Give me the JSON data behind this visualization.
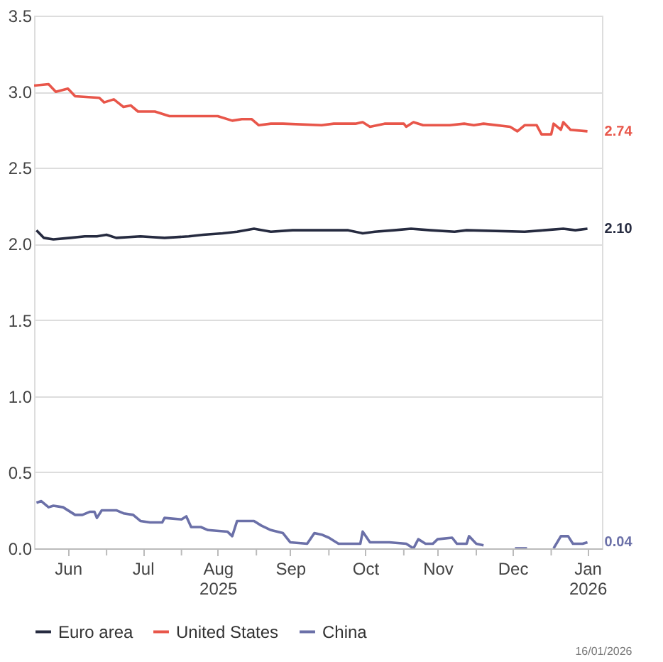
{
  "chart_data": {
    "type": "line",
    "ylim": [
      0,
      3.5
    ],
    "yticks": [
      {
        "value": 0,
        "label": "0.0"
      },
      {
        "value": 0.5,
        "label": "0.5"
      },
      {
        "value": 1,
        "label": "1.0"
      },
      {
        "value": 1.5,
        "label": "1.5"
      },
      {
        "value": 2,
        "label": "2.0"
      },
      {
        "value": 2.5,
        "label": "2.5"
      },
      {
        "value": 3,
        "label": "3.0"
      },
      {
        "value": 3.5,
        "label": "3.5"
      }
    ],
    "xlim": [
      "2025-06-01",
      "2026-01-22"
    ],
    "xticks": [
      {
        "value": "2025-06-15",
        "label": "Jun"
      },
      {
        "value": "2025-07-01",
        "label": null
      },
      {
        "value": "2025-07-16",
        "label": "Jul"
      },
      {
        "value": "2025-08-01",
        "label": null
      },
      {
        "value": "2025-08-16",
        "label": "Aug\n2025"
      },
      {
        "value": "2025-09-01",
        "label": null
      },
      {
        "value": "2025-09-15",
        "label": "Sep"
      },
      {
        "value": "2025-10-01",
        "label": null
      },
      {
        "value": "2025-10-16",
        "label": "Oct"
      },
      {
        "value": "2025-11-01",
        "label": null
      },
      {
        "value": "2025-11-15",
        "label": "Nov"
      },
      {
        "value": "2025-12-01",
        "label": null
      },
      {
        "value": "2025-12-16",
        "label": "Dec"
      },
      {
        "value": "2026-01-01",
        "label": null
      },
      {
        "value": "2026-01-16",
        "label": "Jan\n2026"
      }
    ],
    "grid": "y",
    "legend": "bottom",
    "line_style": "solid",
    "series": [
      {
        "name": "Euro area",
        "color": "#262b40",
        "x": [
          "2025-06-02",
          "2025-06-05",
          "2025-06-09",
          "2025-06-16",
          "2025-06-22",
          "2025-06-27",
          "2025-07-01",
          "2025-07-05",
          "2025-07-15",
          "2025-07-25",
          "2025-08-04",
          "2025-08-10",
          "2025-08-18",
          "2025-08-24",
          "2025-08-31",
          "2025-09-07",
          "2025-09-16",
          "2025-10-09",
          "2025-10-15",
          "2025-10-20",
          "2025-10-28",
          "2025-11-04",
          "2025-11-12",
          "2025-11-22",
          "2025-11-27",
          "2025-12-21",
          "2025-12-29",
          "2026-01-06",
          "2026-01-11",
          "2026-01-16"
        ],
        "values": [
          2.09,
          2.04,
          2.03,
          2.04,
          2.05,
          2.05,
          2.06,
          2.04,
          2.05,
          2.04,
          2.05,
          2.06,
          2.07,
          2.08,
          2.1,
          2.08,
          2.09,
          2.09,
          2.07,
          2.08,
          2.09,
          2.1,
          2.09,
          2.08,
          2.09,
          2.08,
          2.09,
          2.1,
          2.09,
          2.1
        ]
      },
      {
        "name": "United States",
        "color": "#e8564a",
        "x": [
          "2025-06-01",
          "2025-06-07",
          "2025-06-10",
          "2025-06-15",
          "2025-06-18",
          "2025-06-28",
          "2025-06-30",
          "2025-07-04",
          "2025-07-08",
          "2025-07-11",
          "2025-07-14",
          "2025-07-21",
          "2025-07-27",
          "2025-08-16",
          "2025-08-22",
          "2025-08-26",
          "2025-08-30",
          "2025-09-02",
          "2025-09-07",
          "2025-09-12",
          "2025-09-28",
          "2025-10-03",
          "2025-10-12",
          "2025-10-15",
          "2025-10-18",
          "2025-10-24",
          "2025-11-01",
          "2025-11-02",
          "2025-11-05",
          "2025-11-09",
          "2025-11-20",
          "2025-11-26",
          "2025-11-30",
          "2025-12-04",
          "2025-12-15",
          "2025-12-18",
          "2025-12-21",
          "2025-12-26",
          "2025-12-28",
          "2026-01-01",
          "2026-01-02",
          "2026-01-05",
          "2026-01-06",
          "2026-01-09",
          "2026-01-16"
        ],
        "values": [
          3.04,
          3.05,
          3.0,
          3.02,
          2.97,
          2.96,
          2.93,
          2.95,
          2.9,
          2.91,
          2.87,
          2.87,
          2.84,
          2.84,
          2.81,
          2.82,
          2.82,
          2.78,
          2.79,
          2.79,
          2.78,
          2.79,
          2.79,
          2.8,
          2.77,
          2.79,
          2.79,
          2.77,
          2.8,
          2.78,
          2.78,
          2.79,
          2.78,
          2.79,
          2.77,
          2.74,
          2.78,
          2.78,
          2.72,
          2.72,
          2.79,
          2.75,
          2.8,
          2.75,
          2.74
        ]
      },
      {
        "name": "China",
        "color": "#6b70a8",
        "x": [
          "2025-06-02",
          "2025-06-04",
          "2025-06-07",
          "2025-06-09",
          "2025-06-13",
          "2025-06-18",
          "2025-06-21",
          "2025-06-24",
          "2025-06-26",
          "2025-06-27",
          "2025-06-29",
          "2025-07-05",
          "2025-07-08",
          "2025-07-12",
          "2025-07-15",
          "2025-07-19",
          "2025-07-24",
          "2025-07-25",
          "2025-08-01",
          "2025-08-03",
          "2025-08-05",
          "2025-08-09",
          "2025-08-12",
          "2025-08-20",
          "2025-08-22",
          "2025-08-24",
          "2025-08-31",
          "2025-09-03",
          "2025-09-07",
          "2025-09-12",
          "2025-09-15",
          "2025-09-22",
          "2025-09-25",
          "2025-09-28",
          "2025-10-01",
          "2025-10-05",
          "2025-10-14",
          "2025-10-15",
          "2025-10-18",
          "2025-10-26",
          "2025-11-02",
          "2025-11-05",
          "2025-11-07",
          "2025-11-10",
          "2025-11-13",
          "2025-11-15",
          "2025-11-21",
          "2025-11-23",
          "2025-11-27",
          "2025-11-28",
          "2025-12-01",
          "2025-12-04",
          "2025-12-07",
          "2025-12-17",
          "2025-12-22",
          "2025-12-26",
          "2026-01-02",
          "2026-01-05",
          "2026-01-08",
          "2026-01-10",
          "2026-01-14",
          "2026-01-16"
        ],
        "values": [
          0.3,
          0.31,
          0.27,
          0.28,
          0.27,
          0.22,
          0.22,
          0.24,
          0.24,
          0.2,
          0.25,
          0.25,
          0.23,
          0.22,
          0.18,
          0.17,
          0.17,
          0.2,
          0.19,
          0.21,
          0.14,
          0.14,
          0.12,
          0.11,
          0.08,
          0.18,
          0.18,
          0.15,
          0.12,
          0.1,
          0.04,
          0.03,
          0.1,
          0.09,
          0.07,
          0.03,
          0.03,
          0.11,
          0.04,
          0.04,
          0.03,
          0.0,
          0.06,
          0.03,
          0.03,
          0.06,
          0.07,
          0.03,
          0.03,
          0.08,
          0.03,
          0.02,
          null,
          0.0,
          0.0,
          null,
          0.0,
          0.08,
          0.08,
          0.03,
          0.03,
          0.04
        ]
      }
    ],
    "annotations": [
      {
        "text": "2.10",
        "x": "2026-01-16",
        "y": 2.1
      },
      {
        "text": "2.74",
        "x": "2026-01-16",
        "y": 2.74
      },
      {
        "text": "0.04",
        "x": "2026-01-16",
        "y": 0.04
      },
      "16/01/2026"
    ]
  }
}
